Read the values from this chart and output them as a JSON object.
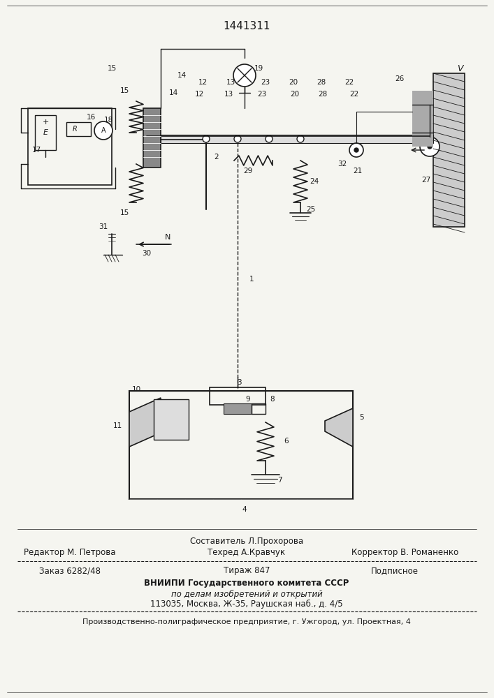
{
  "patent_number": "1441311",
  "bg_color": "#f5f5f0",
  "footer": {
    "compiler": "Составитель Л.Прохорова",
    "editor": "Редактор М. Петрова",
    "techred": "Техред А.Кравчук",
    "corrector": "Корректор В. Романенко",
    "order": "Заказ 6282/48",
    "tirazh": "Тираж 847",
    "podpisnoe": "Подписное",
    "vniip1": "ВНИИПИ Государственного комитета СССР",
    "vniip2": "по делам изобретений и открытий",
    "vniip3": "113035, Москва, Ж-35, Раушская наб., д. 4/5",
    "factory": "Производственно-полиграфическое предприятие, г. Ужгород, ул. Проектная, 4"
  }
}
